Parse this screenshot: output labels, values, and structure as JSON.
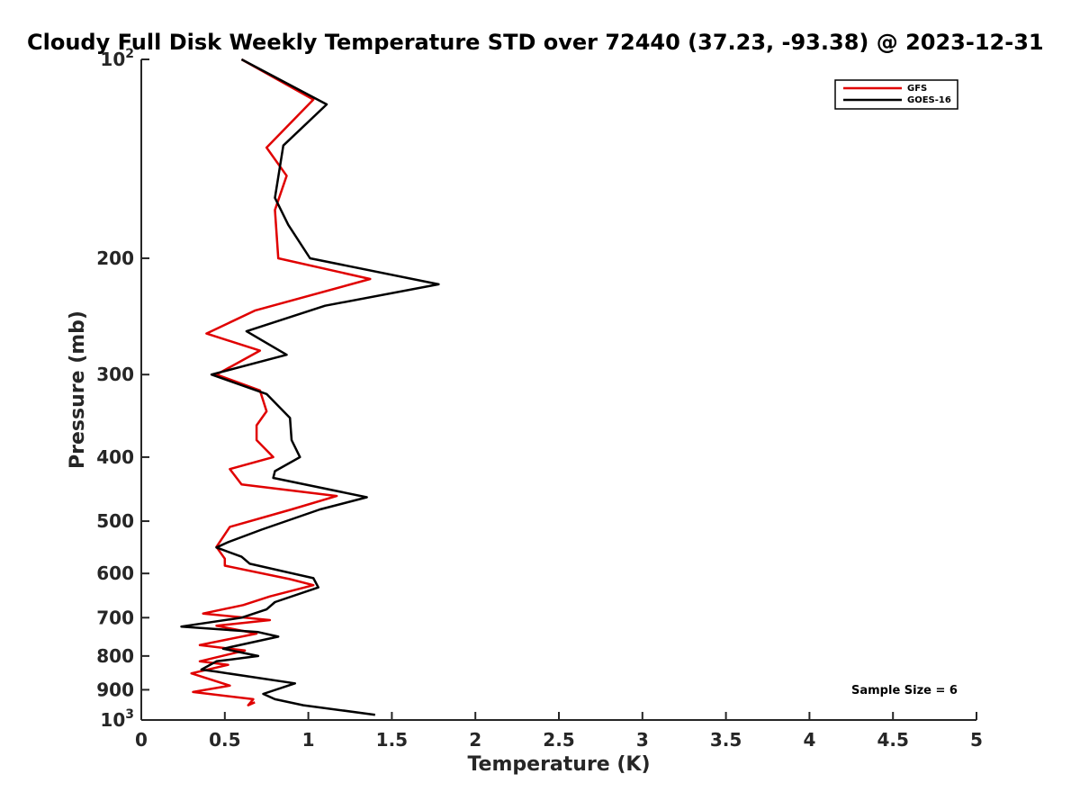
{
  "chart_data": {
    "type": "line",
    "title": "Cloudy Full Disk Weekly Temperature STD over 72440 (37.23, -93.38) @ 2023-12-31",
    "xlabel": "Temperature (K)",
    "ylabel": "Pressure (mb)",
    "xlim": [
      0,
      5
    ],
    "ylim": [
      100,
      1000
    ],
    "y_scale": "log",
    "y_reversed": true,
    "grid": false,
    "legend_position": "top-right",
    "x_ticks": [
      "0",
      "0.5",
      "1",
      "1.5",
      "2",
      "2.5",
      "3",
      "3.5",
      "4",
      "4.5",
      "5"
    ],
    "y_ticks": [
      {
        "value": 100,
        "base": "10",
        "exp": "2"
      },
      {
        "value": 200,
        "label": "200"
      },
      {
        "value": 300,
        "label": "300"
      },
      {
        "value": 400,
        "label": "400"
      },
      {
        "value": 500,
        "label": "500"
      },
      {
        "value": 600,
        "label": "600"
      },
      {
        "value": 700,
        "label": "700"
      },
      {
        "value": 800,
        "label": "800"
      },
      {
        "value": 900,
        "label": "900"
      },
      {
        "value": 1000,
        "base": "10",
        "exp": "3"
      }
    ],
    "annotation": "Sample Size = 6",
    "series": [
      {
        "name": "GFS",
        "color": "#e00000",
        "points": [
          [
            0.6,
            100
          ],
          [
            1.03,
            115
          ],
          [
            0.75,
            136
          ],
          [
            0.87,
            150
          ],
          [
            0.8,
            169
          ],
          [
            0.82,
            200
          ],
          [
            1.37,
            215
          ],
          [
            0.68,
            240
          ],
          [
            0.39,
            260
          ],
          [
            0.71,
            276
          ],
          [
            0.45,
            300
          ],
          [
            0.71,
            317
          ],
          [
            0.75,
            341
          ],
          [
            0.69,
            358
          ],
          [
            0.69,
            377
          ],
          [
            0.79,
            400
          ],
          [
            0.53,
            417
          ],
          [
            0.6,
            440
          ],
          [
            1.17,
            458
          ],
          [
            0.9,
            480
          ],
          [
            0.53,
            510
          ],
          [
            0.45,
            547
          ],
          [
            0.5,
            570
          ],
          [
            0.5,
            584
          ],
          [
            0.89,
            612
          ],
          [
            1.03,
            625
          ],
          [
            0.77,
            650
          ],
          [
            0.61,
            670
          ],
          [
            0.37,
            690
          ],
          [
            0.77,
            706
          ],
          [
            0.45,
            720
          ],
          [
            0.69,
            740
          ],
          [
            0.35,
            770
          ],
          [
            0.62,
            785
          ],
          [
            0.35,
            815
          ],
          [
            0.52,
            825
          ],
          [
            0.3,
            850
          ],
          [
            0.53,
            887
          ],
          [
            0.31,
            907
          ],
          [
            0.67,
            930
          ],
          [
            0.64,
            950
          ],
          [
            0.68,
            940
          ]
        ]
      },
      {
        "name": "GOES-16",
        "color": "#000000",
        "points": [
          [
            0.6,
            100
          ],
          [
            1.11,
            117
          ],
          [
            0.85,
            135
          ],
          [
            0.8,
            162
          ],
          [
            0.88,
            178
          ],
          [
            1.01,
            200
          ],
          [
            1.78,
            219
          ],
          [
            1.1,
            236
          ],
          [
            0.63,
            258
          ],
          [
            0.87,
            280
          ],
          [
            0.42,
            300
          ],
          [
            0.75,
            321
          ],
          [
            0.89,
            349
          ],
          [
            0.9,
            377
          ],
          [
            0.95,
            400
          ],
          [
            0.8,
            420
          ],
          [
            0.79,
            430
          ],
          [
            1.35,
            460
          ],
          [
            1.07,
            480
          ],
          [
            0.72,
            515
          ],
          [
            0.52,
            538
          ],
          [
            0.45,
            548
          ],
          [
            0.6,
            566
          ],
          [
            0.65,
            580
          ],
          [
            1.03,
            610
          ],
          [
            1.06,
            630
          ],
          [
            0.8,
            663
          ],
          [
            0.75,
            680
          ],
          [
            0.6,
            700
          ],
          [
            0.24,
            722
          ],
          [
            0.7,
            736
          ],
          [
            0.82,
            748
          ],
          [
            0.49,
            780
          ],
          [
            0.7,
            800
          ],
          [
            0.45,
            815
          ],
          [
            0.36,
            839
          ],
          [
            0.45,
            845
          ],
          [
            0.92,
            880
          ],
          [
            0.73,
            913
          ],
          [
            0.8,
            930
          ],
          [
            0.97,
            950
          ],
          [
            1.4,
            982
          ]
        ]
      }
    ]
  }
}
